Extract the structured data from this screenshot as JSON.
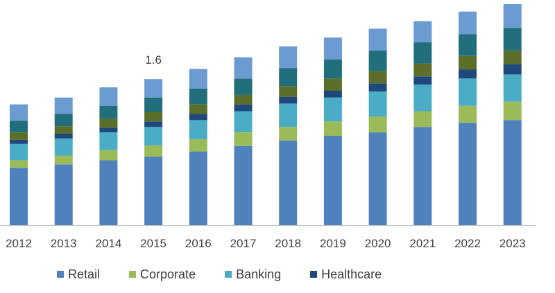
{
  "chart_data": {
    "type": "bar",
    "stacked": true,
    "categories": [
      "2012",
      "2013",
      "2014",
      "2015",
      "2016",
      "2017",
      "2018",
      "2019",
      "2020",
      "2021",
      "2022",
      "2023"
    ],
    "series": [
      {
        "name": "Retail",
        "color": "#4f81bd",
        "values": [
          0.84,
          0.89,
          0.95,
          1.0,
          1.08,
          1.16,
          1.24,
          1.31,
          1.36,
          1.44,
          1.5,
          1.54
        ]
      },
      {
        "name": "Corporate",
        "color": "#9bbb59",
        "values": [
          0.11,
          0.13,
          0.15,
          0.17,
          0.18,
          0.2,
          0.2,
          0.21,
          0.23,
          0.23,
          0.25,
          0.27
        ]
      },
      {
        "name": "Banking",
        "color": "#4bacc6",
        "values": [
          0.24,
          0.25,
          0.26,
          0.27,
          0.28,
          0.31,
          0.34,
          0.35,
          0.37,
          0.39,
          0.4,
          0.4
        ]
      },
      {
        "name": "Healthcare",
        "color": "#1f497d",
        "values": [
          0.06,
          0.07,
          0.07,
          0.08,
          0.09,
          0.1,
          0.1,
          0.1,
          0.12,
          0.12,
          0.13,
          0.15
        ]
      },
      {
        "name": "",
        "color": "#5b6f2a",
        "values": [
          0.11,
          0.11,
          0.13,
          0.14,
          0.14,
          0.14,
          0.16,
          0.18,
          0.18,
          0.19,
          0.2,
          0.2
        ]
      },
      {
        "name": "",
        "color": "#216e7c",
        "values": [
          0.17,
          0.18,
          0.19,
          0.21,
          0.23,
          0.24,
          0.26,
          0.28,
          0.3,
          0.31,
          0.32,
          0.33
        ]
      },
      {
        "name": "",
        "color": "#6b9bd1",
        "values": [
          0.24,
          0.24,
          0.27,
          0.27,
          0.29,
          0.31,
          0.32,
          0.32,
          0.32,
          0.31,
          0.33,
          0.35
        ]
      }
    ],
    "annotations": [
      {
        "category": "2015",
        "text": "1.6"
      }
    ],
    "ylim": [
      0,
      3.3
    ],
    "grid": false,
    "legend_position": "bottom"
  }
}
